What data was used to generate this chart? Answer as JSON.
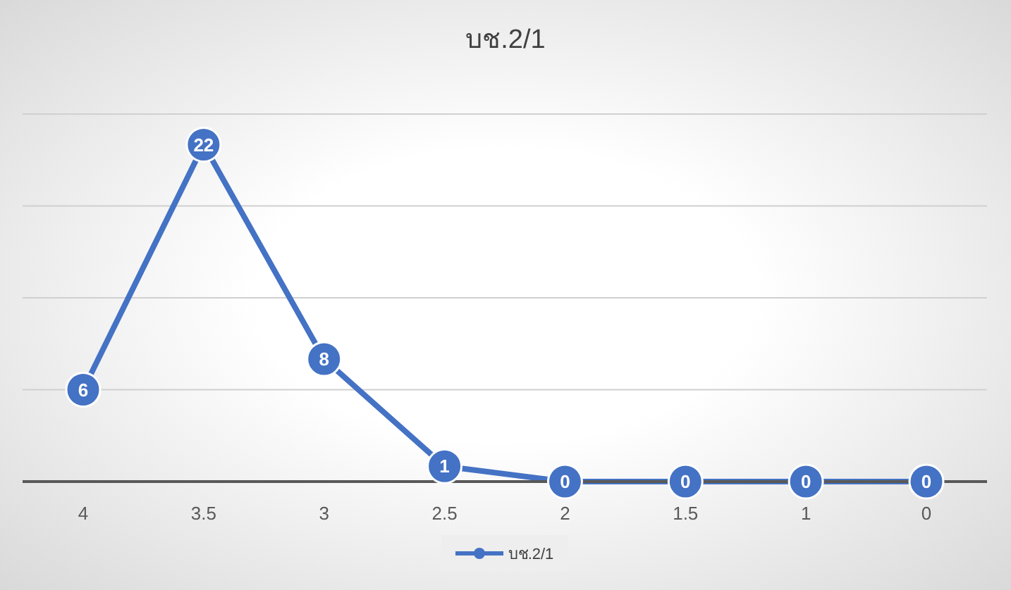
{
  "chart_data": {
    "type": "line",
    "title": "บช.2/1",
    "categories": [
      "4",
      "3.5",
      "3",
      "2.5",
      "2",
      "1.5",
      "1",
      "0"
    ],
    "series": [
      {
        "name": "บช.2/1",
        "color": "#4472c4",
        "values": [
          6,
          22,
          8,
          1,
          0,
          0,
          0,
          0
        ]
      }
    ],
    "tick_labels": "x",
    "grid": "y",
    "legend": "bottom",
    "marker": "circle",
    "line_style": "solid",
    "data_labels": true
  }
}
